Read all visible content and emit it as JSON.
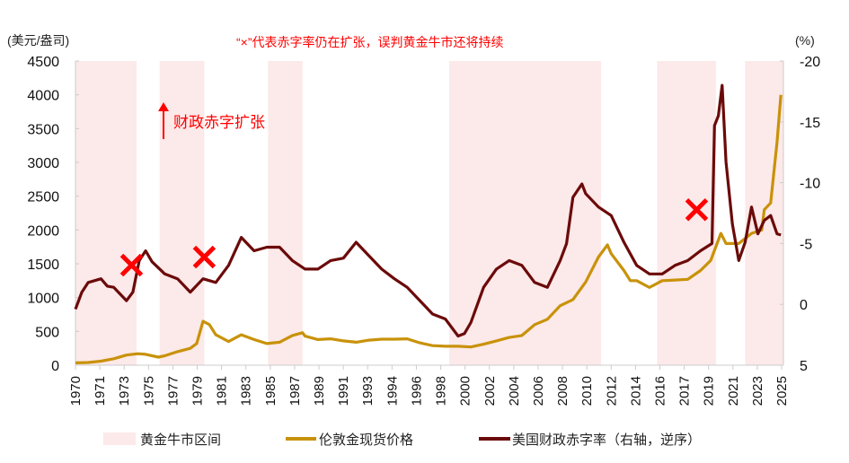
{
  "chart_data": {
    "type": "line",
    "title": "",
    "annotation_top": "“×”代表赤字率仍在扩张，误判黄金牛市还将持续",
    "annotation_arrow": "财政赤字扩张",
    "left_axis": {
      "unit_label": "(美元/盎司)",
      "range": [
        0,
        4500
      ],
      "ticks": [
        0,
        500,
        1000,
        1500,
        2000,
        2500,
        3000,
        3500,
        4000,
        4500
      ]
    },
    "right_axis": {
      "unit_label": "(%)",
      "range": [
        5,
        -20
      ],
      "inverted": true,
      "ticks": [
        -20,
        -15,
        -10,
        -5,
        0,
        5
      ]
    },
    "x_range": [
      1970,
      2025.5
    ],
    "x_tick_labels": [
      "1970",
      "1971",
      "1973",
      "1975",
      "1977",
      "1979",
      "1981",
      "1983",
      "1985",
      "1987",
      "1989",
      "1991",
      "1993",
      "1994",
      "1996",
      "1998",
      "2000",
      "2002",
      "2004",
      "2006",
      "2008",
      "2010",
      "2012",
      "2014",
      "2016",
      "2017",
      "2019",
      "2021",
      "2023",
      "2025"
    ],
    "bull_markets": [
      [
        1970,
        1974.8
      ],
      [
        1976.6,
        1980.1
      ],
      [
        1985.1,
        1987.8
      ],
      [
        1999.3,
        2011.2
      ],
      [
        2015.6,
        2020.2
      ],
      [
        2022.5,
        2025.5
      ]
    ],
    "colors": {
      "bull": "#fce9e9",
      "gold": "#c8920a",
      "deficit": "#6b0a0a",
      "annotation": "#ff0000",
      "axis": "#cccccc"
    },
    "markers": [
      {
        "x": 1974.4,
        "y_left": 1480
      },
      {
        "x": 1980.1,
        "y_left": 1600
      },
      {
        "x": 2018.7,
        "y_left": 2300
      }
    ],
    "series": [
      {
        "name": "伦敦金现货价格",
        "axis": "left",
        "x": [
          1970,
          1971,
          1972,
          1973,
          1974,
          1974.9,
          1975.5,
          1976.5,
          1977,
          1978,
          1979,
          1979.5,
          1980,
          1980.5,
          1981,
          1982,
          1983,
          1984,
          1985,
          1986,
          1987,
          1987.8,
          1988,
          1989,
          1990,
          1991,
          1992,
          1993,
          1994,
          1995,
          1996,
          1997,
          1998,
          1999,
          2000,
          2001,
          2002,
          2003,
          2004,
          2005,
          2006,
          2007,
          2008,
          2009,
          2010,
          2011,
          2011.7,
          2012,
          2013,
          2013.5,
          2014,
          2015,
          2016,
          2017,
          2018,
          2019,
          2019.8,
          2020.6,
          2021,
          2022,
          2023,
          2023.8,
          2024,
          2024.5,
          2025,
          2025.3
        ],
        "y": [
          35,
          40,
          60,
          95,
          150,
          170,
          160,
          120,
          140,
          200,
          250,
          320,
          650,
          600,
          450,
          350,
          450,
          380,
          320,
          340,
          440,
          480,
          430,
          380,
          390,
          360,
          340,
          370,
          385,
          385,
          390,
          330,
          290,
          280,
          280,
          270,
          310,
          360,
          410,
          440,
          600,
          680,
          880,
          970,
          1230,
          1600,
          1780,
          1650,
          1400,
          1250,
          1250,
          1150,
          1250,
          1260,
          1270,
          1400,
          1550,
          1950,
          1800,
          1800,
          1950,
          2000,
          2300,
          2400,
          3300,
          4000
        ]
      },
      {
        "name": "美国财政赤字率（右轴，逆序）",
        "axis": "right",
        "x": [
          1970,
          1970.5,
          1971,
          1972,
          1972.5,
          1973,
          1974,
          1974.5,
          1975,
          1975.5,
          1976,
          1977,
          1978,
          1979,
          1980,
          1981,
          1982,
          1983,
          1984,
          1985,
          1986,
          1987,
          1988,
          1989,
          1990,
          1991,
          1992,
          1993,
          1994,
          1995,
          1996,
          1997,
          1998,
          1999,
          2000,
          2000.5,
          2001,
          2002,
          2003,
          2004,
          2005,
          2006,
          2007,
          2008,
          2008.5,
          2009,
          2009.7,
          2010,
          2011,
          2012,
          2013,
          2014,
          2015,
          2016,
          2017,
          2018,
          2019,
          2019.9,
          2020.1,
          2020.4,
          2020.7,
          2021,
          2021.5,
          2022,
          2022.5,
          2023,
          2023.5,
          2024,
          2024.5,
          2025,
          2025.3
        ],
        "y": [
          0.4,
          -1,
          -1.8,
          -2.1,
          -1.5,
          -1.4,
          -0.3,
          -1,
          -3.6,
          -4.4,
          -3.5,
          -2.5,
          -2.1,
          -1,
          -2.1,
          -1.8,
          -3.2,
          -5.5,
          -4.4,
          -4.7,
          -4.7,
          -3.6,
          -2.9,
          -2.9,
          -3.6,
          -3.8,
          -5.1,
          -4,
          -2.9,
          -2.1,
          -1.4,
          -0.3,
          0.8,
          1.2,
          2.6,
          2.4,
          1.5,
          -1.4,
          -2.9,
          -3.6,
          -3.2,
          -1.8,
          -1.4,
          -3.6,
          -5,
          -8.8,
          -9.9,
          -9.1,
          -8,
          -7.3,
          -5.1,
          -3.2,
          -2.5,
          -2.5,
          -3.2,
          -3.6,
          -4.4,
          -5,
          -14.7,
          -15.5,
          -18,
          -11.7,
          -6.6,
          -3.6,
          -5.1,
          -8,
          -5.8,
          -6.9,
          -7.3,
          -5.8,
          -5.7
        ]
      }
    ],
    "legend": [
      {
        "label": "黄金牛市区间",
        "kind": "band"
      },
      {
        "label": "伦敦金现货价格",
        "kind": "gold"
      },
      {
        "label": "美国财政赤字率（右轴，逆序）",
        "kind": "deficit"
      }
    ]
  }
}
